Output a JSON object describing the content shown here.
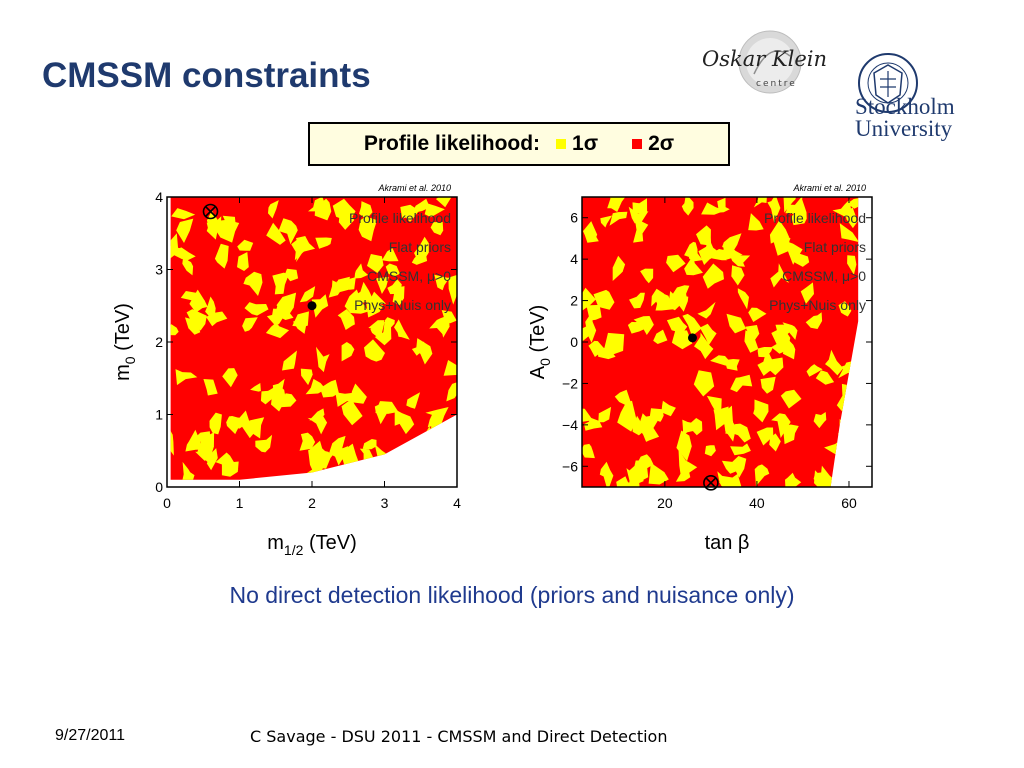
{
  "slide": {
    "title": "CMSSM constraints",
    "caption": "No direct detection likelihood (priors and nuisance only)",
    "footer_date": "9/27/2011",
    "footer_talk": "C Savage - DSU 2011 - CMSSM and Direct Detection"
  },
  "logos": {
    "klein_signature": "Oskar Klein",
    "klein_sub": "centre",
    "stockholm_line1": "Stockholm",
    "stockholm_line2": "University"
  },
  "legend": {
    "label": "Profile likelihood:",
    "one_sigma": "1σ",
    "two_sigma": "2σ",
    "color_1sigma": "#ffff00",
    "color_2sigma": "#ff0000"
  },
  "chart_data": [
    {
      "type": "heatmap",
      "credit": "Akrami et al. 2010",
      "xlabel_main": "m",
      "xlabel_sub": "1/2",
      "xlabel_unit": " (TeV)",
      "ylabel_main": "m",
      "ylabel_sub": "0",
      "ylabel_unit": " (TeV)",
      "xlim": [
        0,
        4
      ],
      "ylim": [
        0,
        4
      ],
      "xticks": [
        "0",
        "1",
        "2",
        "3",
        "4"
      ],
      "yticks": [
        "0",
        "1",
        "2",
        "3",
        "4"
      ],
      "annotations": [
        "Profile likelihood",
        "Flat priors",
        "CMSSM, μ>0",
        "Phys+Nuis only"
      ],
      "best_fit": [
        0.6,
        3.8
      ],
      "posterior_mean": [
        2.0,
        2.5
      ],
      "region_2sigma": [
        [
          0.05,
          4.0
        ],
        [
          4.0,
          4.0
        ],
        [
          4.0,
          1.0
        ],
        [
          3.0,
          0.45
        ],
        [
          2.0,
          0.2
        ],
        [
          1.0,
          0.1
        ],
        [
          0.05,
          0.1
        ]
      ]
    },
    {
      "type": "heatmap",
      "credit": "Akrami et al. 2010",
      "xlabel_main": "tan β",
      "ylabel_main": "A",
      "ylabel_sub": "0",
      "ylabel_unit": " (TeV)",
      "xlim": [
        2,
        65
      ],
      "ylim": [
        -7,
        7
      ],
      "xticks": [
        "20",
        "40",
        "60"
      ],
      "xtick_values": [
        20,
        40,
        60
      ],
      "yticks": [
        "−6",
        "−4",
        "−2",
        "0",
        "2",
        "4",
        "6"
      ],
      "ytick_values": [
        -6,
        -4,
        -2,
        0,
        2,
        4,
        6
      ],
      "annotations": [
        "Profile likelihood",
        "Flat priors",
        "CMSSM, μ>0",
        "Phys+Nuis only"
      ],
      "best_fit": [
        30,
        -6.8
      ],
      "posterior_mean": [
        26,
        0.2
      ],
      "region_2sigma": [
        [
          2,
          7
        ],
        [
          62,
          7
        ],
        [
          62,
          1
        ],
        [
          58,
          -4
        ],
        [
          56,
          -7
        ],
        [
          2,
          -7
        ]
      ]
    }
  ]
}
